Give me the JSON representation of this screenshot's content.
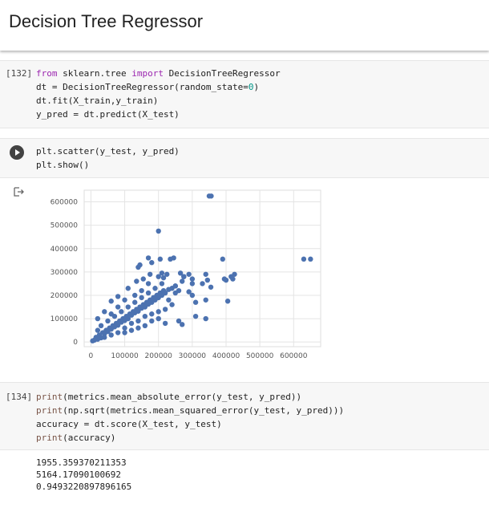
{
  "heading": {
    "title": "Decision Tree Regressor"
  },
  "cells": [
    {
      "prompt": "[132]",
      "lines": [
        [
          {
            "t": "from",
            "c": "kw"
          },
          {
            "t": " sklearn.tree ",
            "c": ""
          },
          {
            "t": "import",
            "c": "kw"
          },
          {
            "t": " DecisionTreeRegressor",
            "c": ""
          }
        ],
        [
          {
            "t": "dt = DecisionTreeRegressor(random_state=",
            "c": ""
          },
          {
            "t": "0",
            "c": "num"
          },
          {
            "t": ")",
            "c": ""
          }
        ],
        [
          {
            "t": "dt.fit(X_train,y_train)",
            "c": ""
          }
        ],
        [
          {
            "t": "y_pred = dt.predict(X_test)",
            "c": ""
          }
        ]
      ]
    },
    {
      "prompt": "",
      "lines": [
        [
          {
            "t": "plt.scatter(y_test, y_pred)",
            "c": ""
          }
        ],
        [
          {
            "t": "plt.show()",
            "c": ""
          }
        ]
      ]
    },
    {
      "prompt": "[134]",
      "lines": [
        [
          {
            "t": "print",
            "c": "fn"
          },
          {
            "t": "(metrics.mean_absolute_error(y_test, y_pred))",
            "c": ""
          }
        ],
        [
          {
            "t": "print",
            "c": "fn"
          },
          {
            "t": "(np.sqrt(metrics.mean_squared_error(y_test, y_pred)))",
            "c": ""
          }
        ],
        [
          {
            "t": "accuracy = dt.score(X_test, y_test)",
            "c": ""
          }
        ],
        [
          {
            "t": "print",
            "c": "fn"
          },
          {
            "t": "(accuracy)",
            "c": ""
          }
        ]
      ]
    }
  ],
  "output": {
    "lines": [
      "1955.359370211353",
      "5164.17090100692",
      "0.9493220897896165"
    ]
  },
  "icons": {
    "run": "play-icon",
    "output": "output-arrow-icon"
  },
  "chart_data": {
    "type": "scatter",
    "title": "",
    "xlabel": "",
    "ylabel": "",
    "xlim": [
      -20000,
      680000
    ],
    "ylim": [
      -20000,
      650000
    ],
    "xticks": [
      0,
      100000,
      200000,
      300000,
      400000,
      500000,
      600000
    ],
    "yticks": [
      0,
      100000,
      200000,
      300000,
      400000,
      500000,
      600000
    ],
    "xtick_labels": [
      "0",
      "100000",
      "200000",
      "300000",
      "400000",
      "500000",
      "600000"
    ],
    "ytick_labels": [
      "0",
      "100000",
      "200000",
      "300000",
      "400000",
      "500000",
      "600000"
    ],
    "grid": true,
    "color": "#4c72b0",
    "series": [
      {
        "points": [
          [
            5000,
            5000
          ],
          [
            10000,
            8000
          ],
          [
            15000,
            20000
          ],
          [
            20000,
            12000
          ],
          [
            25000,
            30000
          ],
          [
            30000,
            18000
          ],
          [
            35000,
            40000
          ],
          [
            40000,
            35000
          ],
          [
            45000,
            50000
          ],
          [
            50000,
            45000
          ],
          [
            55000,
            60000
          ],
          [
            60000,
            55000
          ],
          [
            65000,
            70000
          ],
          [
            70000,
            65000
          ],
          [
            75000,
            80000
          ],
          [
            80000,
            72000
          ],
          [
            85000,
            90000
          ],
          [
            90000,
            85000
          ],
          [
            95000,
            100000
          ],
          [
            100000,
            92000
          ],
          [
            105000,
            110000
          ],
          [
            110000,
            100000
          ],
          [
            115000,
            120000
          ],
          [
            120000,
            115000
          ],
          [
            125000,
            130000
          ],
          [
            130000,
            125000
          ],
          [
            135000,
            140000
          ],
          [
            140000,
            132000
          ],
          [
            145000,
            150000
          ],
          [
            150000,
            145000
          ],
          [
            155000,
            160000
          ],
          [
            160000,
            150000
          ],
          [
            165000,
            170000
          ],
          [
            170000,
            162000
          ],
          [
            175000,
            180000
          ],
          [
            180000,
            170000
          ],
          [
            185000,
            190000
          ],
          [
            190000,
            180000
          ],
          [
            195000,
            200000
          ],
          [
            200000,
            190000
          ],
          [
            205000,
            210000
          ],
          [
            210000,
            200000
          ],
          [
            215000,
            220000
          ],
          [
            220000,
            210000
          ],
          [
            230000,
            225000
          ],
          [
            240000,
            230000
          ],
          [
            250000,
            240000
          ],
          [
            20000,
            50000
          ],
          [
            30000,
            70000
          ],
          [
            40000,
            20000
          ],
          [
            50000,
            90000
          ],
          [
            60000,
            30000
          ],
          [
            70000,
            110000
          ],
          [
            80000,
            40000
          ],
          [
            90000,
            130000
          ],
          [
            100000,
            60000
          ],
          [
            110000,
            150000
          ],
          [
            120000,
            80000
          ],
          [
            130000,
            170000
          ],
          [
            140000,
            90000
          ],
          [
            150000,
            190000
          ],
          [
            160000,
            110000
          ],
          [
            170000,
            210000
          ],
          [
            180000,
            120000
          ],
          [
            190000,
            230000
          ],
          [
            200000,
            130000
          ],
          [
            210000,
            250000
          ],
          [
            220000,
            140000
          ],
          [
            100000,
            40000
          ],
          [
            120000,
            50000
          ],
          [
            140000,
            60000
          ],
          [
            160000,
            70000
          ],
          [
            180000,
            90000
          ],
          [
            200000,
            100000
          ],
          [
            60000,
            120000
          ],
          [
            80000,
            150000
          ],
          [
            100000,
            180000
          ],
          [
            130000,
            200000
          ],
          [
            150000,
            220000
          ],
          [
            170000,
            250000
          ],
          [
            20000,
            100000
          ],
          [
            40000,
            130000
          ],
          [
            60000,
            175000
          ],
          [
            80000,
            195000
          ],
          [
            110000,
            230000
          ],
          [
            135000,
            260000
          ],
          [
            155000,
            270000
          ],
          [
            175000,
            290000
          ],
          [
            200000,
            280000
          ],
          [
            230000,
            180000
          ],
          [
            240000,
            160000
          ],
          [
            250000,
            210000
          ],
          [
            260000,
            220000
          ],
          [
            270000,
            260000
          ],
          [
            275000,
            280000
          ],
          [
            290000,
            290000
          ],
          [
            300000,
            200000
          ],
          [
            310000,
            170000
          ],
          [
            220000,
            80000
          ],
          [
            260000,
            90000
          ],
          [
            270000,
            75000
          ],
          [
            300000,
            270000
          ],
          [
            330000,
            250000
          ],
          [
            340000,
            180000
          ],
          [
            340000,
            100000
          ],
          [
            310000,
            110000
          ],
          [
            140000,
            320000
          ],
          [
            145000,
            330000
          ],
          [
            170000,
            360000
          ],
          [
            180000,
            340000
          ],
          [
            205000,
            355000
          ],
          [
            210000,
            295000
          ],
          [
            215000,
            275000
          ],
          [
            225000,
            290000
          ],
          [
            235000,
            355000
          ],
          [
            245000,
            360000
          ],
          [
            250000,
            240000
          ],
          [
            265000,
            295000
          ],
          [
            275000,
            280000
          ],
          [
            290000,
            215000
          ],
          [
            300000,
            250000
          ],
          [
            340000,
            290000
          ],
          [
            345000,
            265000
          ],
          [
            355000,
            235000
          ],
          [
            390000,
            355000
          ],
          [
            395000,
            270000
          ],
          [
            400000,
            265000
          ],
          [
            405000,
            175000
          ],
          [
            415000,
            280000
          ],
          [
            420000,
            270000
          ],
          [
            425000,
            290000
          ],
          [
            630000,
            355000
          ],
          [
            650000,
            355000
          ],
          [
            200000,
            475000
          ],
          [
            350000,
            625000
          ],
          [
            356000,
            625000
          ]
        ]
      }
    ]
  }
}
